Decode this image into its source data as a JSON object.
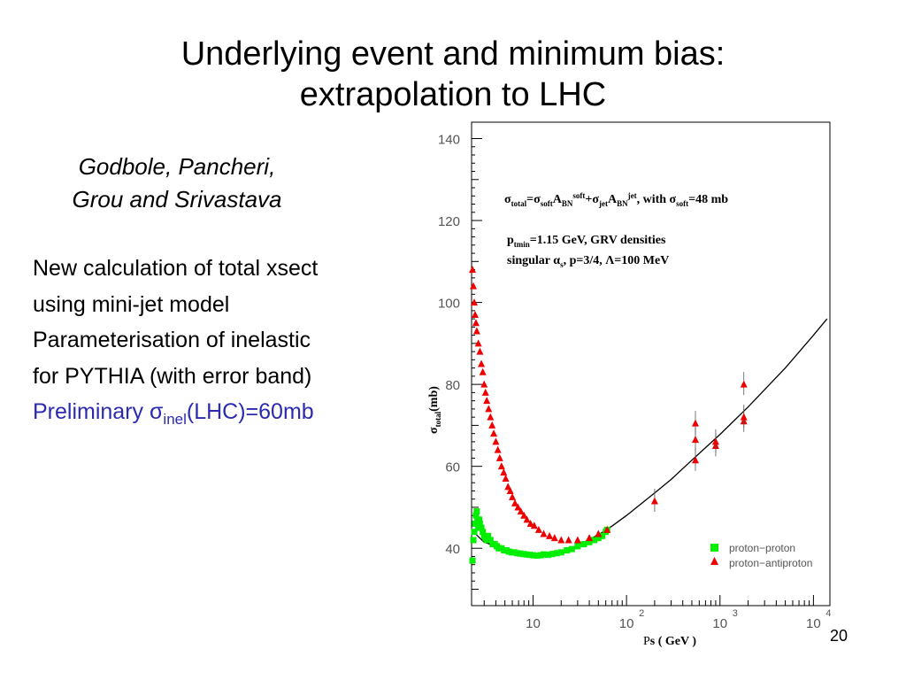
{
  "slide": {
    "title_line1": "Underlying event and minimum bias:",
    "title_line2": "extrapolation to LHC",
    "authors_line1": "Godbole, Pancheri,",
    "authors_line2": "Grou and Srivastava",
    "bullets": [
      "New calculation of total xsect",
      "using mini-jet model",
      "Parameterisation of inelastic",
      "for PYTHIA (with error band)"
    ],
    "preliminary_prefix": "Preliminary ",
    "preliminary_sigma": "σ",
    "preliminary_sub": "inel",
    "preliminary_suffix": "(LHC)=60mb",
    "page_number": "20",
    "colors": {
      "preliminary": "#2b2bb0",
      "proton_proton": "#00ee00",
      "proton_antiproton": "#ee0000"
    }
  },
  "chart_data": {
    "type": "scatter",
    "x_axis": {
      "label": "Ps ( GeV )",
      "scale": "log",
      "range": [
        2.2,
        15000
      ]
    },
    "y_axis": {
      "label": "σtotal(mb)",
      "scale": "linear",
      "range": [
        26,
        144
      ],
      "ticks": [
        "40",
        "60",
        "80",
        "100",
        "120",
        "140"
      ]
    },
    "x_tick_labels": [
      {
        "base": "10",
        "exp": ""
      },
      {
        "base": "10",
        "exp": "2"
      },
      {
        "base": "10",
        "exp": "3"
      },
      {
        "base": "10",
        "exp": "4"
      }
    ],
    "annotation_formula": "σtotal=σsoftABNsoft+σjetABNjet, with σsoft=48 mb",
    "annotation_line2": "ptmin=1.15 GeV, GRV densities",
    "annotation_line3": "singular αs, p=3/4, Λ=100 MeV",
    "series": [
      {
        "name": "proton−proton",
        "marker": "square",
        "color": "#00ee00",
        "points": [
          [
            2.25,
            37
          ],
          [
            2.3,
            42
          ],
          [
            2.35,
            44
          ],
          [
            2.4,
            46
          ],
          [
            2.45,
            48
          ],
          [
            2.5,
            49
          ],
          [
            2.55,
            47
          ],
          [
            2.6,
            45
          ],
          [
            2.65,
            47
          ],
          [
            2.7,
            46
          ],
          [
            2.8,
            45
          ],
          [
            2.9,
            44
          ],
          [
            3.0,
            43
          ],
          [
            3.1,
            42.5
          ],
          [
            3.2,
            42
          ],
          [
            3.3,
            43
          ],
          [
            3.5,
            42
          ],
          [
            3.7,
            41
          ],
          [
            3.9,
            41
          ],
          [
            4.1,
            40.5
          ],
          [
            4.3,
            40
          ],
          [
            4.6,
            40
          ],
          [
            4.9,
            39.5
          ],
          [
            5.2,
            39.5
          ],
          [
            5.5,
            39.2
          ],
          [
            5.9,
            39
          ],
          [
            6.3,
            39
          ],
          [
            6.8,
            38.8
          ],
          [
            7.3,
            38.7
          ],
          [
            7.9,
            38.6
          ],
          [
            8.5,
            38.5
          ],
          [
            9.2,
            38.4
          ],
          [
            10,
            38.3
          ],
          [
            11,
            38.2
          ],
          [
            12,
            38.3
          ],
          [
            13,
            38.5
          ],
          [
            14.5,
            38.4
          ],
          [
            16,
            38.6
          ],
          [
            18,
            38.8
          ],
          [
            20,
            39
          ],
          [
            23,
            39.5
          ],
          [
            26,
            39.8
          ],
          [
            30,
            40.5
          ],
          [
            35,
            41
          ],
          [
            40,
            41.5
          ],
          [
            45,
            42
          ],
          [
            50,
            42.5
          ],
          [
            55,
            43
          ],
          [
            60,
            44
          ],
          [
            62,
            44.5
          ]
        ]
      },
      {
        "name": "proton−antiproton",
        "marker": "triangle",
        "color": "#ee0000",
        "points": [
          [
            2.25,
            108
          ],
          [
            2.3,
            104
          ],
          [
            2.35,
            100
          ],
          [
            2.4,
            97
          ],
          [
            2.45,
            95
          ],
          [
            2.5,
            93
          ],
          [
            2.6,
            90
          ],
          [
            2.7,
            88
          ],
          [
            2.8,
            85
          ],
          [
            2.9,
            83
          ],
          [
            3.0,
            80
          ],
          [
            3.1,
            78
          ],
          [
            3.2,
            76
          ],
          [
            3.35,
            74
          ],
          [
            3.5,
            72
          ],
          [
            3.65,
            70
          ],
          [
            3.8,
            68
          ],
          [
            4.0,
            66
          ],
          [
            4.2,
            64
          ],
          [
            4.4,
            62
          ],
          [
            4.6,
            60
          ],
          [
            4.85,
            58.5
          ],
          [
            5.1,
            57
          ],
          [
            5.4,
            55
          ],
          [
            5.7,
            54
          ],
          [
            6.0,
            52.5
          ],
          [
            6.4,
            51
          ],
          [
            6.9,
            50
          ],
          [
            7.4,
            49
          ],
          [
            8.0,
            48
          ],
          [
            8.6,
            47
          ],
          [
            9.4,
            46
          ],
          [
            10.3,
            45.5
          ],
          [
            11.5,
            44.5
          ],
          [
            13,
            43.5
          ],
          [
            15,
            43
          ],
          [
            17,
            42.5
          ],
          [
            20,
            42
          ],
          [
            24,
            42
          ],
          [
            30,
            42
          ],
          [
            40,
            42.5
          ],
          [
            50,
            43.5
          ],
          [
            62,
            44.5
          ],
          [
            200,
            51.5
          ],
          [
            546,
            61.5
          ],
          [
            546,
            66.5
          ],
          [
            546,
            70.5
          ],
          [
            900,
            65
          ],
          [
            900,
            66
          ],
          [
            1800,
            71
          ],
          [
            1800,
            72
          ],
          [
            1800,
            80
          ]
        ]
      }
    ],
    "model_curve": {
      "points": [
        [
          2.3,
          44
        ],
        [
          3,
          41.5
        ],
        [
          4,
          40.5
        ],
        [
          6,
          39.5
        ],
        [
          8,
          38.9
        ],
        [
          10,
          38.6
        ],
        [
          15,
          38.7
        ],
        [
          20,
          39.3
        ],
        [
          30,
          40.7
        ],
        [
          50,
          43.3
        ],
        [
          70,
          45.4
        ],
        [
          100,
          48
        ],
        [
          200,
          53.5
        ],
        [
          300,
          56.8
        ],
        [
          500,
          61.5
        ],
        [
          1000,
          67.8
        ],
        [
          2000,
          74.5
        ],
        [
          5000,
          84
        ],
        [
          10000,
          92
        ],
        [
          14000,
          96
        ]
      ]
    },
    "legend_position": "lower-right",
    "grid": false
  }
}
